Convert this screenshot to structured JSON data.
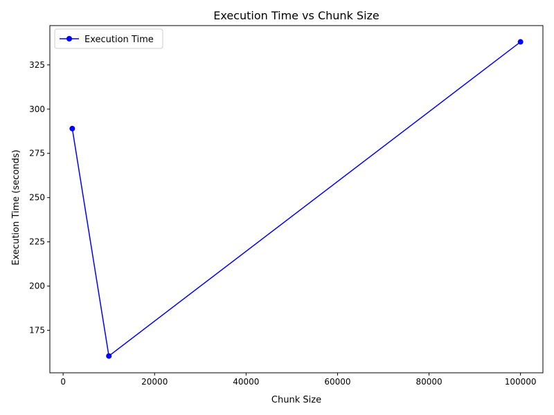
{
  "chart_data": {
    "type": "line",
    "title": "Execution Time vs Chunk Size",
    "xlabel": "Chunk Size",
    "ylabel": "Execution Time (seconds)",
    "xlim": [
      -2900,
      104900
    ],
    "ylim": [
      151.0,
      347.2
    ],
    "xticks": [
      0,
      20000,
      40000,
      60000,
      80000,
      100000
    ],
    "xtick_labels": [
      "0",
      "20000",
      "40000",
      "60000",
      "80000",
      "100000"
    ],
    "yticks": [
      175,
      200,
      225,
      250,
      275,
      300,
      325
    ],
    "ytick_labels": [
      "175",
      "200",
      "225",
      "250",
      "275",
      "300",
      "325"
    ],
    "grid": false,
    "legend_position": "upper-left",
    "series": [
      {
        "name": "Execution Time",
        "color": "#0000ff",
        "marker": "circle",
        "x": [
          2000,
          10000,
          100000
        ],
        "y": [
          289,
          160.5,
          338
        ]
      }
    ]
  }
}
